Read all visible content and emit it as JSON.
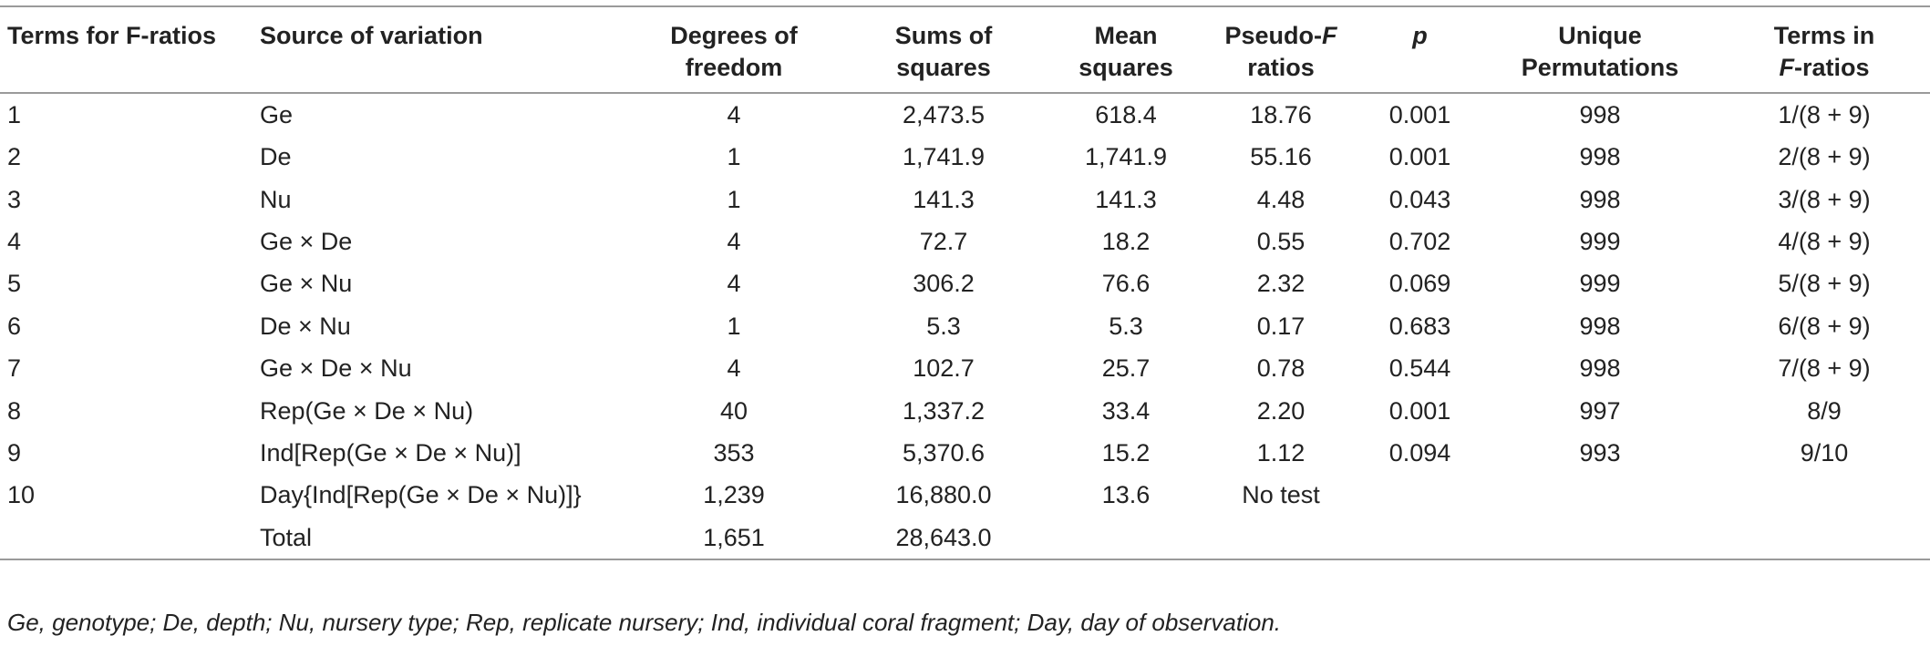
{
  "table": {
    "headers": {
      "terms": "Terms for F-ratios",
      "source": "Source of variation",
      "df_line1": "Degrees of",
      "df_line2": "freedom",
      "ss_line1": "Sums of",
      "ss_line2": "squares",
      "ms_line1": "Mean",
      "ms_line2": "squares",
      "pf_line1_a": "Pseudo-",
      "pf_line1_b": "F",
      "pf_line2": "ratios",
      "p": "p",
      "up_line1": "Unique",
      "up_line2": "Permutations",
      "tf_line1": "Terms in",
      "tf_line2_a": "F",
      "tf_line2_b": "-ratios"
    },
    "rows": [
      {
        "term": "1",
        "source": "Ge",
        "df": "4",
        "ss": "2,473.5",
        "ms": "618.4",
        "pf": "18.76",
        "p": "0.001",
        "perm": "998",
        "fterm": "1/(8 + 9)"
      },
      {
        "term": "2",
        "source": "De",
        "df": "1",
        "ss": "1,741.9",
        "ms": "1,741.9",
        "pf": "55.16",
        "p": "0.001",
        "perm": "998",
        "fterm": "2/(8 + 9)"
      },
      {
        "term": "3",
        "source": "Nu",
        "df": "1",
        "ss": "141.3",
        "ms": "141.3",
        "pf": "4.48",
        "p": "0.043",
        "perm": "998",
        "fterm": "3/(8 + 9)"
      },
      {
        "term": "4",
        "source": "Ge × De",
        "df": "4",
        "ss": "72.7",
        "ms": "18.2",
        "pf": "0.55",
        "p": "0.702",
        "perm": "999",
        "fterm": "4/(8 + 9)"
      },
      {
        "term": "5",
        "source": "Ge × Nu",
        "df": "4",
        "ss": "306.2",
        "ms": "76.6",
        "pf": "2.32",
        "p": "0.069",
        "perm": "999",
        "fterm": "5/(8 + 9)"
      },
      {
        "term": "6",
        "source": "De × Nu",
        "df": "1",
        "ss": "5.3",
        "ms": "5.3",
        "pf": "0.17",
        "p": "0.683",
        "perm": "998",
        "fterm": "6/(8 + 9)"
      },
      {
        "term": "7",
        "source": "Ge × De × Nu",
        "df": "4",
        "ss": "102.7",
        "ms": "25.7",
        "pf": "0.78",
        "p": "0.544",
        "perm": "998",
        "fterm": "7/(8 + 9)"
      },
      {
        "term": "8",
        "source": "Rep(Ge × De × Nu)",
        "df": "40",
        "ss": "1,337.2",
        "ms": "33.4",
        "pf": "2.20",
        "p": "0.001",
        "perm": "997",
        "fterm": "8/9"
      },
      {
        "term": "9",
        "source": "Ind[Rep(Ge × De × Nu)]",
        "df": "353",
        "ss": "5,370.6",
        "ms": "15.2",
        "pf": "1.12",
        "p": "0.094",
        "perm": "993",
        "fterm": "9/10"
      },
      {
        "term": "10",
        "source": "Day{Ind[Rep(Ge × De × Nu)]}",
        "df": "1,239",
        "ss": "16,880.0",
        "ms": "13.6",
        "pf": "No test",
        "p": "",
        "perm": "",
        "fterm": ""
      },
      {
        "term": "",
        "source": "Total",
        "df": "1,651",
        "ss": "28,643.0",
        "ms": "",
        "pf": "",
        "p": "",
        "perm": "",
        "fterm": ""
      }
    ]
  },
  "footnote": "Ge, genotype; De, depth; Nu, nursery type; Rep, replicate nursery; Ind, individual coral fragment; Day, day of observation."
}
